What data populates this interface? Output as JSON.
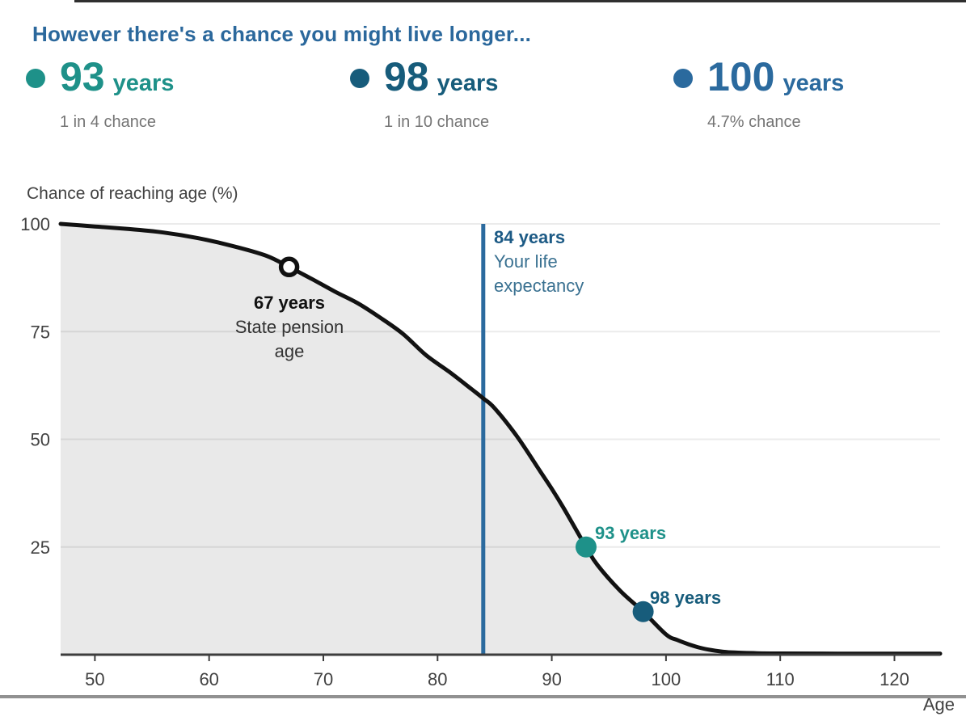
{
  "header": {
    "title": "However there's a chance you might live longer..."
  },
  "colors": {
    "title": "#2B689C",
    "teal": "#1E9189",
    "dark_blue": "#175C7B",
    "blue": "#2B6A9E",
    "vline": "#2B6A9E",
    "curve": "#121212",
    "area_fill": "#e9e9e9",
    "grid": "rgba(0,0,0,0.08)",
    "axis": "#3d3d3d",
    "axis_text": "#414141",
    "caption_gray": "#757575",
    "ann84_bold": "#1C5A85",
    "ann84_sub": "#3A7191",
    "marker_open_ring": "#111111"
  },
  "callouts": [
    {
      "value": "93",
      "unit": "years",
      "caption": "1 in 4 chance",
      "color": "#1E9189"
    },
    {
      "value": "98",
      "unit": "years",
      "caption": "1 in 10 chance",
      "color": "#175C7B"
    },
    {
      "value": "100",
      "unit": "years",
      "caption": "4.7% chance",
      "color": "#2B6A9E"
    }
  ],
  "chart_data": {
    "type": "area",
    "title": "Chance of reaching age (%)",
    "xlabel": "Age",
    "ylabel": "Chance of reaching age (%)",
    "xlim": [
      47,
      124
    ],
    "ylim": [
      0,
      100
    ],
    "x_ticks": [
      50,
      60,
      70,
      80,
      90,
      100,
      110,
      120
    ],
    "y_ticks": [
      100,
      75,
      50,
      25
    ],
    "grid": "horizontal only",
    "legend": "none",
    "series": [
      {
        "name": "Chance of reaching age (%)",
        "points": [
          [
            47,
            100
          ],
          [
            50,
            99.4
          ],
          [
            53,
            98.8
          ],
          [
            56,
            98
          ],
          [
            59,
            96.7
          ],
          [
            62,
            94.9
          ],
          [
            65,
            92.6
          ],
          [
            67,
            90
          ],
          [
            69,
            87.2
          ],
          [
            71,
            84.3
          ],
          [
            73,
            81.6
          ],
          [
            75,
            78.2
          ],
          [
            77,
            74.4
          ],
          [
            79,
            69.5
          ],
          [
            81,
            65.7
          ],
          [
            83,
            61.6
          ],
          [
            84,
            59.5
          ],
          [
            85,
            57.2
          ],
          [
            87,
            50.5
          ],
          [
            89,
            42.5
          ],
          [
            90,
            38.5
          ],
          [
            91,
            34.2
          ],
          [
            93,
            25
          ],
          [
            94,
            20.8
          ],
          [
            96,
            14.8
          ],
          [
            98,
            10
          ],
          [
            100,
            4.7
          ],
          [
            101,
            3.4
          ],
          [
            102,
            2.4
          ],
          [
            103,
            1.6
          ],
          [
            104,
            1.05
          ],
          [
            105,
            0.7
          ],
          [
            106,
            0.5
          ],
          [
            108,
            0.33
          ],
          [
            110,
            0.28
          ],
          [
            115,
            0.25
          ],
          [
            120,
            0.25
          ],
          [
            124,
            0.25
          ]
        ]
      }
    ],
    "annotations": {
      "pension": {
        "age": 67,
        "pct": 90,
        "label": "67 years",
        "sublabel": "State pension age",
        "marker": "open-circle"
      },
      "life_expectancy": {
        "age": 84,
        "label": "84 years",
        "sublabel": "Your life expectancy",
        "marker": "vertical-line"
      },
      "p93": {
        "age": 93,
        "pct": 25,
        "label": "93 years",
        "marker": "filled-dot-teal"
      },
      "p98": {
        "age": 98,
        "pct": 10,
        "label": "98 years",
        "marker": "filled-dot-darkblue"
      }
    }
  }
}
